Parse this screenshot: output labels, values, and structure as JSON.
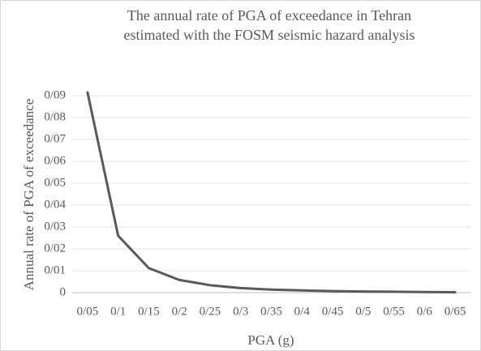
{
  "chart_data": {
    "type": "line",
    "title": [
      "The annual rate of PGA of exceedance in Tehran",
      "estimated with the FOSM seismic hazard analysis"
    ],
    "x_label": "PGA (g)",
    "y_label": "Annual rate of PGA of exceedance",
    "categories": [
      "0/05",
      "0/1",
      "0/15",
      "0/2",
      "0/25",
      "0/3",
      "0/35",
      "0/4",
      "0/45",
      "0/5",
      "0/55",
      "0/6",
      "0/65"
    ],
    "series": [
      {
        "name": "Annual rate of PGA of exceedance",
        "color": "#595959",
        "values": [
          0.0915,
          0.026,
          0.0112,
          0.0058,
          0.0034,
          0.0021,
          0.0014,
          0.001,
          0.0007,
          0.0005,
          0.0004,
          0.0003,
          0.0002
        ]
      }
    ],
    "ylim": [
      0,
      0.09
    ],
    "yticks": [
      0,
      {
        "value": 0.01,
        "label": "0/01"
      },
      {
        "value": 0.02,
        "label": "0/02"
      },
      {
        "value": 0.03,
        "label": "0/03"
      },
      {
        "value": 0.04,
        "label": "0/04"
      },
      {
        "value": 0.05,
        "label": "0/05"
      },
      {
        "value": 0.06,
        "label": "0/06"
      },
      {
        "value": 0.07,
        "label": "0/07"
      },
      {
        "value": 0.08,
        "label": "0/08"
      },
      {
        "value": 0.09,
        "label": "0/09"
      }
    ],
    "grid": true
  }
}
